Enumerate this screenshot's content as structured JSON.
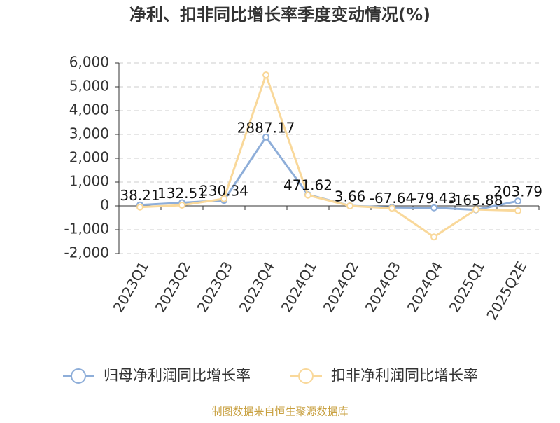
{
  "chart_data": {
    "type": "line",
    "title": "净利、扣非同比增长率季度变动情况(%)",
    "categories": [
      "2023Q1",
      "2023Q2",
      "2023Q3",
      "2023Q4",
      "2024Q1",
      "2024Q2",
      "2024Q3",
      "2024Q4",
      "2025Q1",
      "2025Q2E"
    ],
    "series": [
      {
        "name": "归母净利润同比增长率",
        "color": "#8eaed9",
        "values": [
          38.21,
          132.51,
          230.34,
          2887.17,
          471.62,
          3.66,
          -67.64,
          -79.43,
          -165.88,
          203.79
        ],
        "show_labels": true
      },
      {
        "name": "扣非净利润同比增长率",
        "color": "#f9d89a",
        "values": [
          -50,
          30,
          300,
          5500,
          450,
          0,
          -100,
          -1300,
          -150,
          -200
        ],
        "show_labels": false
      }
    ],
    "ylim": [
      -2000,
      6000
    ],
    "yticks": [
      {
        "value": -2000,
        "label": "-2,000"
      },
      {
        "value": -1000,
        "label": "-1,000"
      },
      0,
      {
        "value": 1000,
        "label": "1,000"
      },
      {
        "value": 2000,
        "label": "2,000"
      },
      {
        "value": 3000,
        "label": "3,000"
      },
      {
        "value": 4000,
        "label": "4,000"
      },
      {
        "value": 5000,
        "label": "5,000"
      },
      {
        "value": 6000,
        "label": "6,000"
      }
    ],
    "grid": true,
    "legend": "bottom",
    "source": "制图数据来自恒生聚源数据库"
  }
}
